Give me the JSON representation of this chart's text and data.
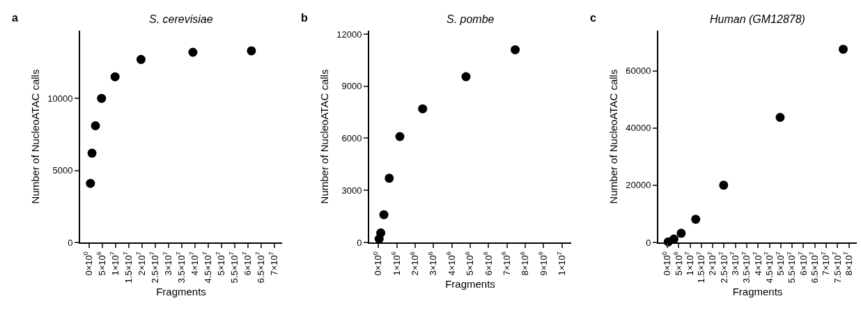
{
  "chart_data": [
    {
      "type": "scatter",
      "title": "S. cerevisiae",
      "xlabel": "Fragments",
      "ylabel": "Number of NucleoATAC calls",
      "annotations": [
        "a"
      ],
      "series": [
        {
          "color": "#000000",
          "x": [
            600000,
            1200000,
            2500000,
            4800000,
            9900000,
            19700000,
            39300000,
            61400000
          ],
          "values": [
            4100,
            6200,
            8100,
            10000,
            11500,
            12700,
            13200,
            13300
          ]
        }
      ],
      "xlim": [
        -3300000,
        73000000
      ],
      "ylim": [
        0,
        14700
      ],
      "xticks": [
        {
          "value": 0,
          "label": "0×10$^{0}$"
        },
        {
          "value": 5000000,
          "label": "5×10$^{6}$"
        },
        {
          "value": 10000000,
          "label": "1×10$^{7}$"
        },
        {
          "value": 15000000,
          "label": "1.5×10$^{7}$"
        },
        {
          "value": 20000000,
          "label": "2×10$^{7}$"
        },
        {
          "value": 25000000,
          "label": "2.5×10$^{7}$"
        },
        {
          "value": 30000000,
          "label": "3×10$^{7}$"
        },
        {
          "value": 35000000,
          "label": "3.5×10$^{7}$"
        },
        {
          "value": 40000000,
          "label": "4×10$^{7}$"
        },
        {
          "value": 45000000,
          "label": "4.5×10$^{7}$"
        },
        {
          "value": 50000000,
          "label": "5×10$^{7}$"
        },
        {
          "value": 55000000,
          "label": "5.5×10$^{7}$"
        },
        {
          "value": 60000000,
          "label": "6×10$^{7}$"
        },
        {
          "value": 65000000,
          "label": "6.5×10$^{7}$"
        },
        {
          "value": 70000000,
          "label": "7×10$^{7}$"
        }
      ],
      "yticks": [
        0,
        5000,
        10000
      ],
      "marker": "circle"
    },
    {
      "type": "scatter",
      "title": "S. pombe",
      "xlabel": "Fragments",
      "ylabel": "Number of NucleoATAC calls",
      "annotations": [
        "b"
      ],
      "series": [
        {
          "color": "#000000",
          "x": [
            40000,
            130000,
            300000,
            590000,
            1170000,
            2410000,
            4770000,
            7450000
          ],
          "values": [
            200,
            550,
            1600,
            3700,
            6100,
            7700,
            9550,
            11100
          ]
        }
      ],
      "xlim": [
        -500000,
        10500000
      ],
      "ylim": [
        0,
        12200
      ],
      "xticks": [
        {
          "value": 0,
          "label": "0×10$^{0}$"
        },
        {
          "value": 1000000,
          "label": "1×10$^{6}$"
        },
        {
          "value": 2000000,
          "label": "2×10$^{6}$"
        },
        {
          "value": 3000000,
          "label": "3×10$^{6}$"
        },
        {
          "value": 4000000,
          "label": "4×10$^{6}$"
        },
        {
          "value": 5000000,
          "label": "5×10$^{6}$"
        },
        {
          "value": 6000000,
          "label": "6×10$^{6}$"
        },
        {
          "value": 7000000,
          "label": "7×10$^{6}$"
        },
        {
          "value": 8000000,
          "label": "8×10$^{6}$"
        },
        {
          "value": 9000000,
          "label": "9×10$^{6}$"
        },
        {
          "value": 10000000,
          "label": "1×10$^{7}$"
        }
      ],
      "yticks": [
        0,
        3000,
        6000,
        9000,
        12000
      ],
      "marker": "circle"
    },
    {
      "type": "scatter",
      "title": "Human (GM12878)",
      "xlabel": "Fragments",
      "ylabel": "Number of NucleoATAC calls",
      "annotations": [
        "c"
      ],
      "series": [
        {
          "color": "#000000",
          "x": [
            400000,
            2900000,
            6100000,
            12500000,
            24800000,
            49700000,
            77500000
          ],
          "values": [
            200,
            1200,
            3200,
            8100,
            20000,
            43700,
            67500
          ]
        }
      ],
      "xlim": [
        -4000000,
        83500000
      ],
      "ylim": [
        0,
        74000
      ],
      "xticks": [
        {
          "value": 0,
          "label": "0×10$^{0}$"
        },
        {
          "value": 5000000,
          "label": "5×10$^{6}$"
        },
        {
          "value": 10000000,
          "label": "1×10$^{7}$"
        },
        {
          "value": 15000000,
          "label": "1.5×10$^{7}$"
        },
        {
          "value": 20000000,
          "label": "2×10$^{7}$"
        },
        {
          "value": 25000000,
          "label": "2.5×10$^{7}$"
        },
        {
          "value": 30000000,
          "label": "3×10$^{7}$"
        },
        {
          "value": 35000000,
          "label": "3.5×10$^{7}$"
        },
        {
          "value": 40000000,
          "label": "4×10$^{7}$"
        },
        {
          "value": 45000000,
          "label": "4.5×10$^{7}$"
        },
        {
          "value": 50000000,
          "label": "5×10$^{7}$"
        },
        {
          "value": 55000000,
          "label": "5.5×10$^{7}$"
        },
        {
          "value": 60000000,
          "label": "6×10$^{7}$"
        },
        {
          "value": 65000000,
          "label": "6.5×10$^{7}$"
        },
        {
          "value": 70000000,
          "label": "7×10$^{7}$"
        },
        {
          "value": 75000000,
          "label": "7.5×10$^{7}$"
        },
        {
          "value": 80000000,
          "label": "8×10$^{7}$"
        }
      ],
      "yticks": [
        0,
        20000,
        40000,
        60000
      ],
      "marker": "circle"
    }
  ]
}
